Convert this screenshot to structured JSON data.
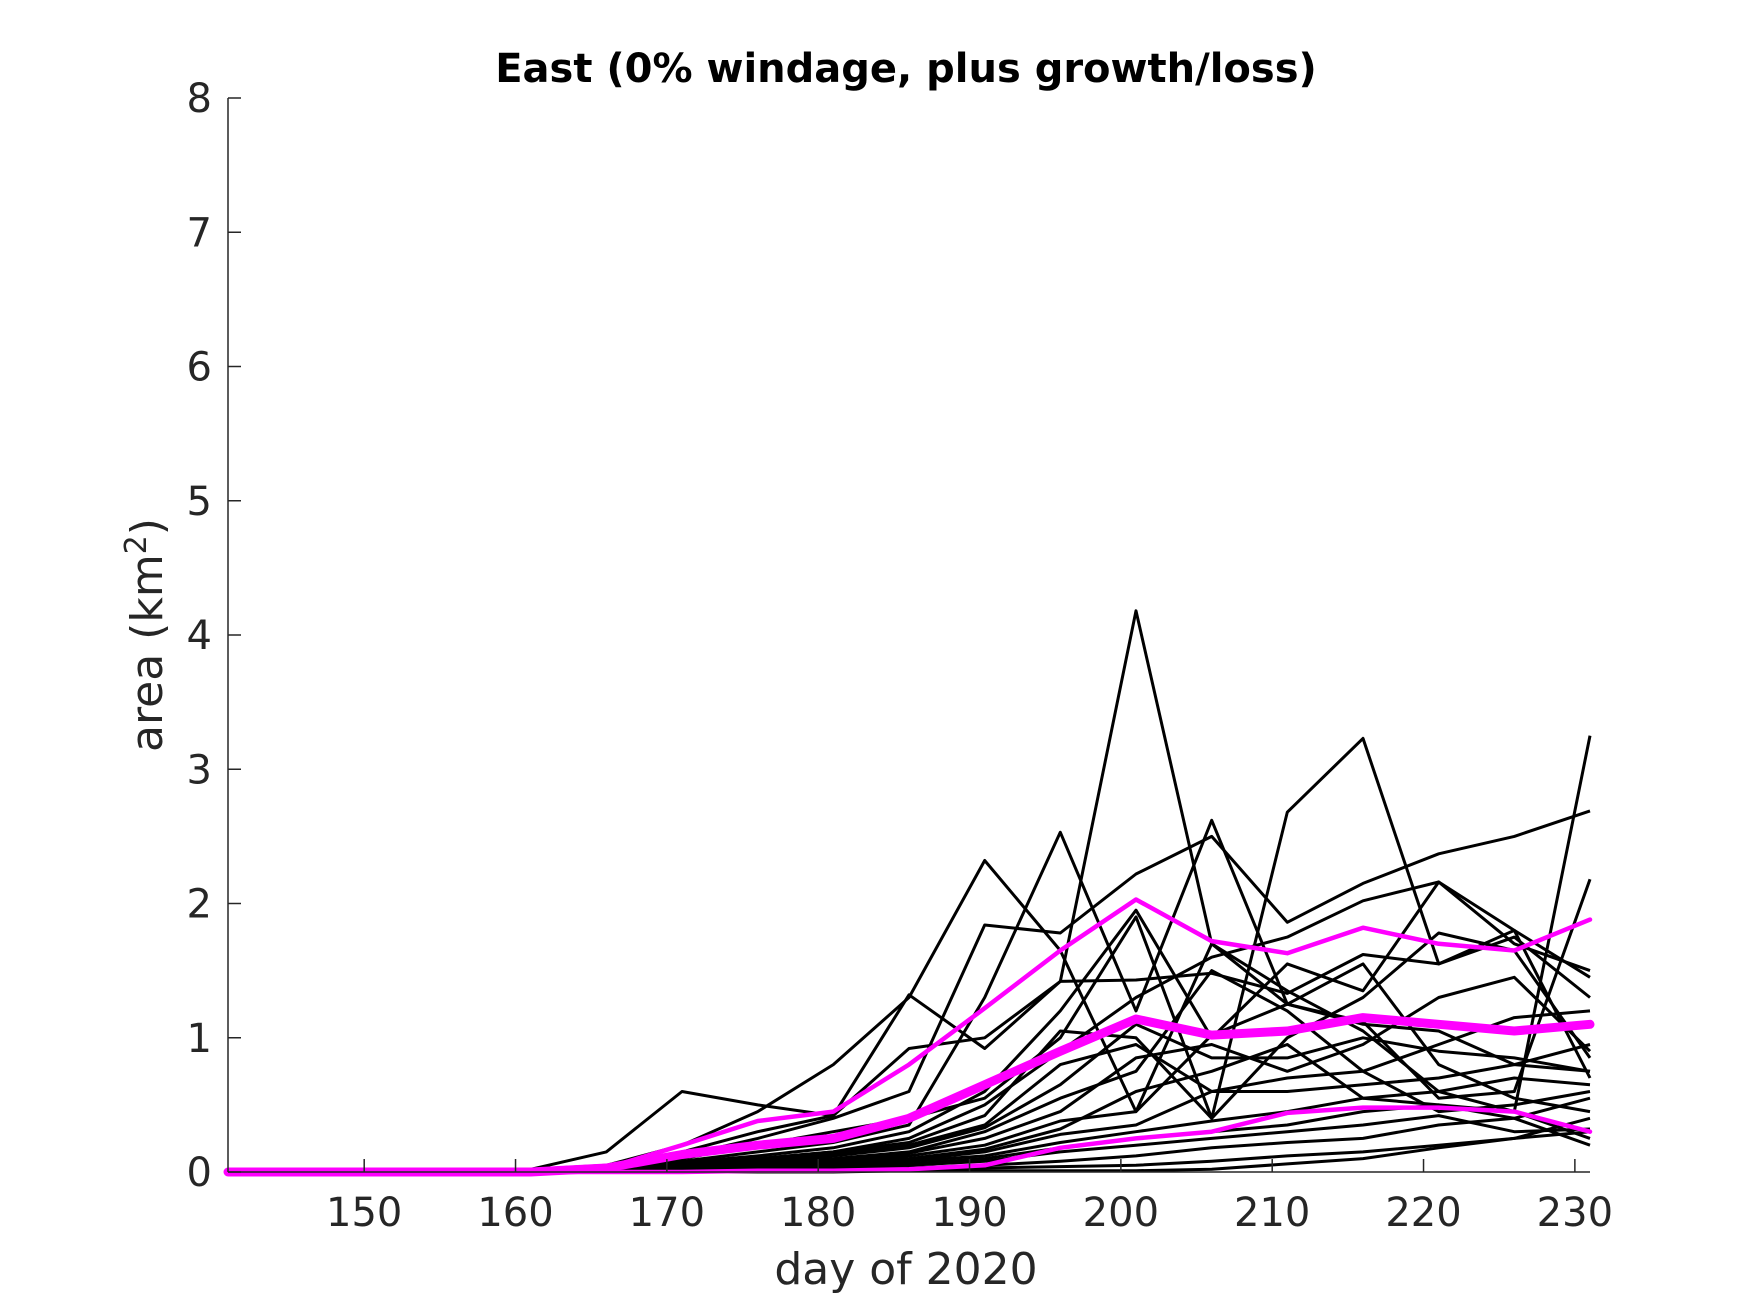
{
  "chart_data": {
    "type": "line",
    "title": "East (0% windage, plus growth/loss)",
    "xlabel": "day of 2020",
    "ylabel_main": "area (km",
    "ylabel_sup": "2",
    "ylabel_close": ")",
    "xlim": [
      141,
      231
    ],
    "ylim": [
      0,
      8
    ],
    "xticks": [
      150,
      160,
      170,
      180,
      190,
      200,
      210,
      220,
      230
    ],
    "yticks": [
      0,
      1,
      2,
      3,
      4,
      5,
      6,
      7,
      8
    ],
    "grid": false,
    "x": [
      141,
      146,
      151,
      156,
      161,
      166,
      171,
      176,
      181,
      186,
      191,
      196,
      201,
      206,
      211,
      216,
      221,
      226,
      231
    ],
    "ensemble_color": "#000000",
    "summary_color": "#ff00ff",
    "ensemble": [
      [
        0,
        0,
        0,
        0,
        0.02,
        0.15,
        0.6,
        0.5,
        0.42,
        1.32,
        0.92,
        1.42,
        1.43,
        1.48,
        1.33,
        1.62,
        1.55,
        1.8,
        1.45
      ],
      [
        0,
        0,
        0,
        0,
        0.02,
        0.05,
        0.2,
        0.45,
        0.8,
        1.3,
        2.32,
        1.65,
        0.45,
        1.7,
        1.35,
        1.05,
        0.6,
        0.45,
        3.25
      ],
      [
        0,
        0,
        0,
        0,
        0,
        0.03,
        0.15,
        0.3,
        0.42,
        0.92,
        1.0,
        1.42,
        4.18,
        1.7,
        1.25,
        1.1,
        1.05,
        0.8,
        0.75
      ],
      [
        0,
        0,
        0,
        0,
        0,
        0.03,
        0.12,
        0.25,
        0.4,
        0.6,
        1.84,
        1.78,
        2.22,
        2.5,
        1.86,
        2.15,
        2.37,
        2.5,
        2.69
      ],
      [
        0,
        0,
        0,
        0,
        0,
        0.02,
        0.1,
        0.2,
        0.3,
        0.4,
        0.55,
        1.0,
        1.9,
        0.4,
        2.68,
        3.23,
        1.55,
        1.75,
        1.3
      ],
      [
        0,
        0,
        0,
        0,
        0,
        0.02,
        0.08,
        0.15,
        0.22,
        0.35,
        1.3,
        2.53,
        1.2,
        2.62,
        1.25,
        1.12,
        0.55,
        0.6,
        2.18
      ],
      [
        0,
        0,
        0,
        0,
        0,
        0.02,
        0.07,
        0.12,
        0.18,
        0.3,
        0.6,
        1.2,
        1.95,
        1.0,
        1.55,
        1.35,
        2.16,
        1.8,
        0.7
      ],
      [
        0,
        0,
        0,
        0,
        0,
        0.01,
        0.06,
        0.1,
        0.15,
        0.25,
        0.5,
        0.9,
        1.3,
        1.6,
        1.75,
        2.02,
        2.16,
        1.7,
        1.5
      ],
      [
        0,
        0,
        0,
        0,
        0,
        0.01,
        0.05,
        0.1,
        0.15,
        0.22,
        0.42,
        1.05,
        1.0,
        0.4,
        1.0,
        1.3,
        1.78,
        1.65,
        0.85
      ],
      [
        0,
        0,
        0,
        0,
        0,
        0.01,
        0.05,
        0.09,
        0.13,
        0.2,
        0.35,
        0.8,
        0.95,
        0.6,
        0.7,
        0.75,
        0.95,
        1.15,
        1.2
      ],
      [
        0,
        0,
        0,
        0,
        0,
        0.01,
        0.04,
        0.08,
        0.12,
        0.18,
        0.33,
        0.65,
        1.1,
        0.85,
        0.85,
        1.0,
        0.9,
        0.85,
        0.75
      ],
      [
        0,
        0,
        0,
        0,
        0,
        0.01,
        0.04,
        0.07,
        0.1,
        0.15,
        0.3,
        0.55,
        0.75,
        1.5,
        1.2,
        0.75,
        0.45,
        0.5,
        0.6
      ],
      [
        0,
        0,
        0,
        0,
        0,
        0.01,
        0.03,
        0.06,
        0.09,
        0.14,
        0.25,
        0.45,
        0.85,
        0.95,
        0.75,
        0.95,
        1.3,
        1.45,
        0.9
      ],
      [
        0,
        0,
        0,
        0,
        0,
        0.01,
        0.03,
        0.05,
        0.08,
        0.12,
        0.2,
        0.38,
        0.45,
        1.02,
        1.25,
        1.55,
        0.8,
        0.55,
        0.45
      ],
      [
        0,
        0,
        0,
        0,
        0,
        0,
        0.02,
        0.05,
        0.07,
        0.1,
        0.17,
        0.32,
        0.6,
        0.75,
        0.95,
        0.55,
        0.6,
        0.7,
        0.65
      ],
      [
        0,
        0,
        0,
        0,
        0,
        0,
        0.02,
        0.04,
        0.06,
        0.09,
        0.15,
        0.28,
        0.35,
        0.6,
        0.6,
        0.65,
        0.7,
        0.8,
        0.95
      ],
      [
        0,
        0,
        0,
        0,
        0,
        0,
        0.02,
        0.03,
        0.05,
        0.08,
        0.12,
        0.22,
        0.3,
        0.38,
        0.45,
        0.55,
        0.5,
        0.45,
        0.25
      ],
      [
        0,
        0,
        0,
        0,
        0,
        0,
        0.01,
        0.03,
        0.04,
        0.06,
        0.1,
        0.18,
        0.25,
        0.3,
        0.35,
        0.45,
        0.5,
        0.4,
        0.2
      ],
      [
        0,
        0,
        0,
        0,
        0,
        0,
        0.01,
        0.02,
        0.03,
        0.05,
        0.08,
        0.15,
        0.2,
        0.25,
        0.3,
        0.35,
        0.42,
        0.3,
        0.32
      ],
      [
        0,
        0,
        0,
        0,
        0,
        0,
        0,
        0.01,
        0.02,
        0.03,
        0.05,
        0.08,
        0.12,
        0.18,
        0.22,
        0.25,
        0.35,
        0.4,
        0.55
      ],
      [
        0,
        0,
        0,
        0,
        0,
        0,
        0,
        0,
        0.01,
        0.02,
        0.03,
        0.04,
        0.05,
        0.08,
        0.12,
        0.15,
        0.2,
        0.25,
        0.3
      ],
      [
        0,
        0,
        0,
        0,
        0,
        0,
        0,
        0,
        0,
        0.01,
        0.01,
        0.01,
        0.01,
        0.02,
        0.06,
        0.1,
        0.18,
        0.25,
        0.4
      ]
    ],
    "summary": [
      {
        "values": [
          0,
          0,
          0,
          0,
          0.01,
          0.03,
          0.2,
          0.38,
          0.45,
          0.8,
          1.22,
          1.65,
          2.03,
          1.72,
          1.63,
          1.82,
          1.7,
          1.65,
          1.88
        ],
        "width": 4.5
      },
      {
        "values": [
          0,
          0,
          0,
          0,
          0,
          0.03,
          0.13,
          0.2,
          0.25,
          0.4,
          0.65,
          0.9,
          1.14,
          1.02,
          1.05,
          1.15,
          1.1,
          1.05,
          1.1
        ],
        "width": 9
      },
      {
        "values": [
          0,
          0,
          0,
          0,
          0,
          0,
          0,
          0.01,
          0.01,
          0.02,
          0.05,
          0.18,
          0.25,
          0.3,
          0.44,
          0.48,
          0.48,
          0.45,
          0.3
        ],
        "width": 4.5
      }
    ]
  }
}
